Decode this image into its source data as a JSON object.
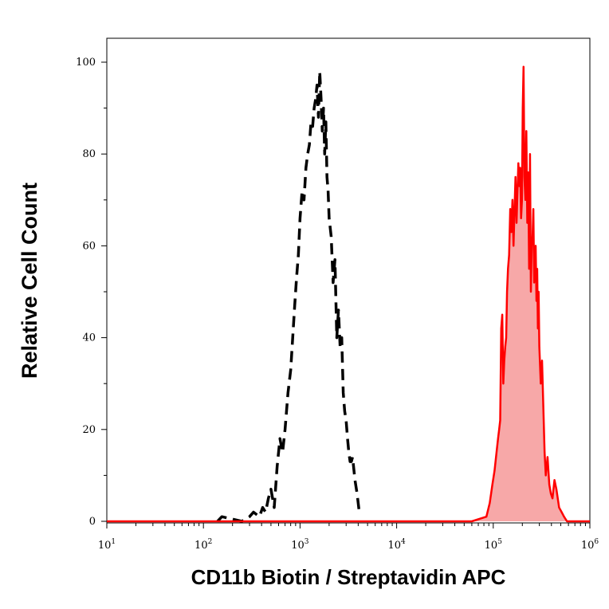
{
  "chart_data": {
    "type": "area",
    "xlabel": "CD11b Biotin / Streptavidin APC",
    "ylabel": "Relative Cell Count",
    "x_scale": "log",
    "xlim": [
      10,
      1000000
    ],
    "ylim": [
      0,
      100
    ],
    "x_ticks": [
      {
        "base": "10",
        "exp": "1",
        "value": 10
      },
      {
        "base": "10",
        "exp": "2",
        "value": 100
      },
      {
        "base": "10",
        "exp": "3",
        "value": 1000
      },
      {
        "base": "10",
        "exp": "4",
        "value": 10000
      },
      {
        "base": "10",
        "exp": "5",
        "value": 100000
      },
      {
        "base": "10",
        "exp": "6",
        "value": 1000000
      }
    ],
    "y_ticks": [
      "0",
      "20",
      "40",
      "60",
      "80",
      "100"
    ],
    "grid": false,
    "series": [
      {
        "style": "dashed",
        "color": "#000000",
        "fill": "none",
        "x": [
          140,
          155,
          250,
          300,
          330,
          380,
          410,
          440,
          470,
          500,
          540,
          580,
          620,
          660,
          700,
          750,
          800,
          840,
          880,
          920,
          960,
          1000,
          1050,
          1100,
          1150,
          1200,
          1250,
          1300,
          1350,
          1400,
          1450,
          1500,
          1550,
          1600,
          1650,
          1700,
          1750,
          1800,
          1850,
          1900,
          1950,
          2000,
          2100,
          2200,
          2300,
          2400,
          2500,
          2600,
          2700,
          2800,
          2900,
          3000,
          3100,
          3200,
          3300,
          3400,
          3500,
          3700,
          3900,
          4100
        ],
        "y": [
          0,
          1,
          0,
          1,
          2,
          1,
          3,
          2,
          5,
          7,
          3,
          12,
          18,
          15,
          20,
          28,
          33,
          40,
          47,
          53,
          58,
          66,
          72,
          70,
          77,
          80,
          82,
          87,
          86,
          90,
          92,
          95,
          88,
          98,
          92,
          85,
          90,
          80,
          87,
          75,
          72,
          66,
          62,
          52,
          57,
          40,
          46,
          38,
          40,
          28,
          24,
          22,
          18,
          15,
          13,
          13,
          14,
          9,
          6,
          2
        ]
      },
      {
        "style": "solid",
        "color": "#ff0000",
        "fill": "#f7a8a8",
        "x": [
          10,
          60000,
          85000,
          92000,
          98000,
          103000,
          108000,
          112000,
          115000,
          118000,
          121000,
          124000,
          127000,
          130000,
          133000,
          136000,
          139000,
          142000,
          146000,
          150000,
          154000,
          158000,
          162000,
          166000,
          170000,
          174000,
          178000,
          182000,
          186000,
          190000,
          194000,
          198000,
          202000,
          206000,
          210000,
          215000,
          220000,
          225000,
          230000,
          235000,
          240000,
          245000,
          250000,
          255000,
          260000,
          265000,
          270000,
          275000,
          280000,
          285000,
          290000,
          295000,
          300000,
          310000,
          320000,
          330000,
          340000,
          350000,
          365000,
          380000,
          395000,
          410000,
          430000,
          450000,
          480000,
          510000,
          540000,
          580000,
          1000000
        ],
        "y": [
          0,
          0,
          1,
          4,
          8,
          11,
          15,
          18,
          20,
          22,
          42,
          45,
          30,
          35,
          38,
          40,
          50,
          55,
          58,
          68,
          63,
          70,
          60,
          68,
          75,
          65,
          72,
          78,
          73,
          77,
          66,
          70,
          90,
          99,
          75,
          70,
          85,
          65,
          76,
          55,
          80,
          50,
          60,
          62,
          68,
          52,
          58,
          60,
          48,
          55,
          42,
          50,
          38,
          30,
          35,
          25,
          15,
          10,
          14,
          8,
          6,
          5,
          9,
          7,
          3,
          2,
          1,
          0,
          0
        ]
      }
    ]
  }
}
